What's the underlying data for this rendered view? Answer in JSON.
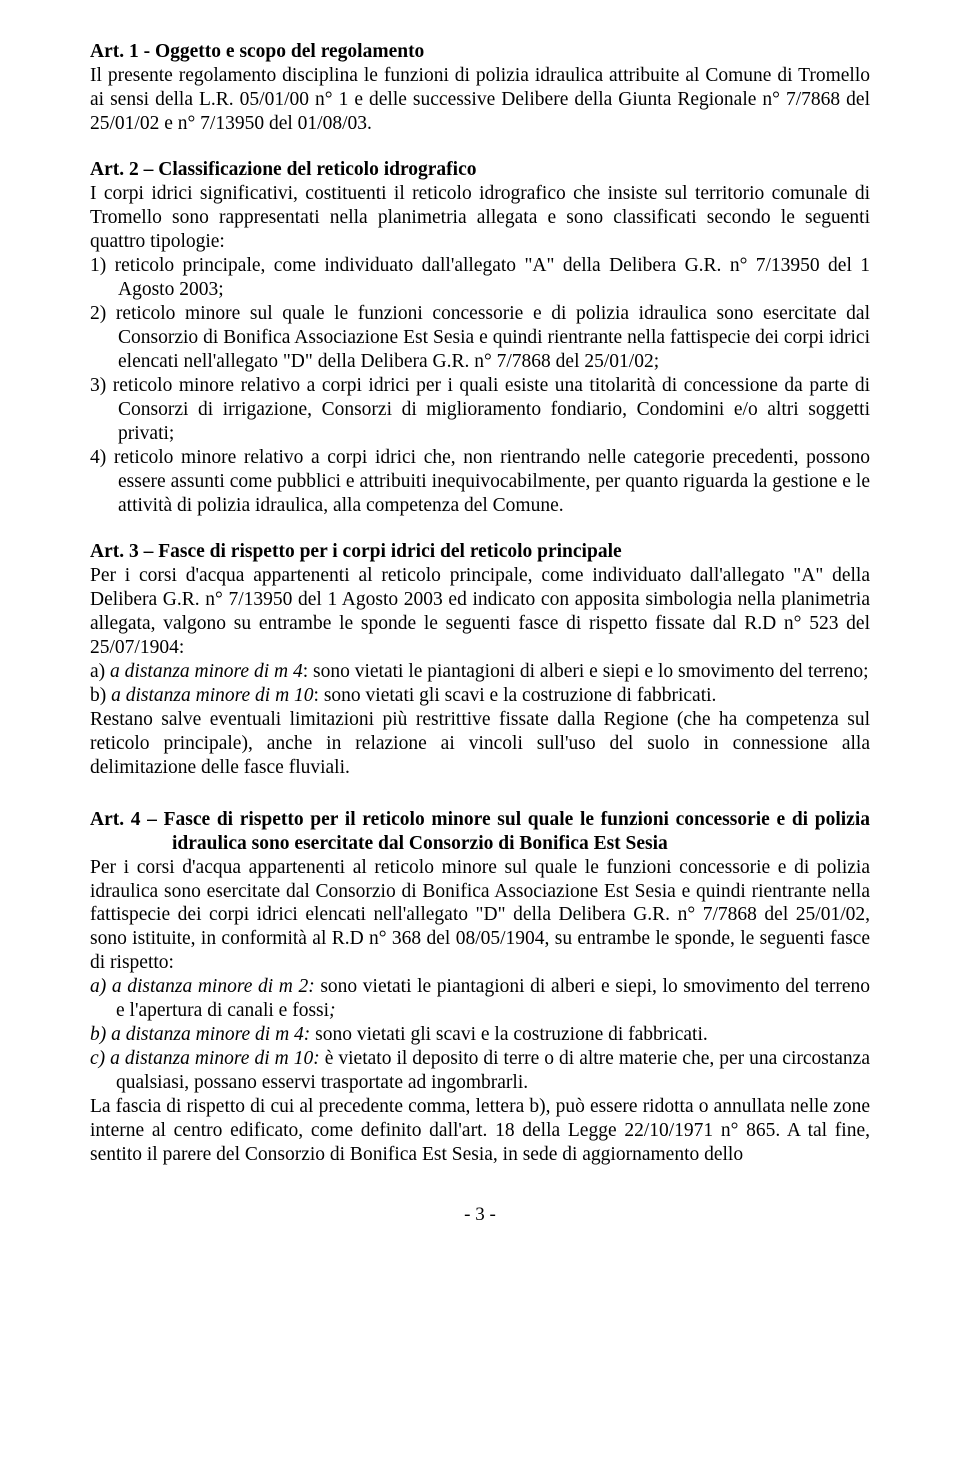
{
  "art1": {
    "heading": "Art. 1 - Oggetto e scopo del regolamento",
    "body": "Il presente regolamento disciplina le funzioni di polizia idraulica attribuite al Comune di Tromello ai sensi della L.R. 05/01/00 n° 1 e delle successive Delibere della Giunta Regionale n° 7/7868 del 25/01/02 e n° 7/13950 del 01/08/03."
  },
  "art2": {
    "heading": "Art. 2 – Classificazione del reticolo idrografico",
    "intro": "I corpi idrici significativi, costituenti il reticolo idrografico che insiste sul territorio comunale di Tromello sono rappresentati nella planimetria allegata e sono classificati secondo le seguenti quattro tipologie:",
    "items": [
      "reticolo principale, come individuato dall'allegato \"A\" della Delibera G.R. n° 7/13950 del 1 Agosto 2003;",
      "reticolo minore sul quale le funzioni concessorie e di polizia idraulica sono esercitate dal Consorzio di Bonifica Associazione Est Sesia e quindi rientrante nella fattispecie dei corpi idrici elencati nell'allegato \"D\" della Delibera G.R. n° 7/7868 del 25/01/02;",
      "reticolo minore relativo a corpi idrici per i quali esiste una titolarità di concessione da parte di Consorzi di irrigazione, Consorzi di miglioramento fondiario, Condomini e/o altri soggetti privati;",
      "reticolo minore relativo a corpi idrici che, non rientrando nelle categorie precedenti, possono essere assunti come pubblici e attribuiti inequivocabilmente, per quanto riguarda la gestione e le attività di polizia idraulica, alla competenza del Comune."
    ]
  },
  "art3": {
    "heading": "Art. 3 – Fasce di rispetto per i corpi idrici del reticolo principale",
    "intro": "Per i corsi d'acqua appartenenti al reticolo principale, come individuato dall'allegato \"A\" della Delibera G.R. n° 7/13950 del 1 Agosto 2003 ed indicato con apposita simbologia nella planimetria allegata, valgono su entrambe le sponde le seguenti fasce di rispetto fissate dal R.D n° 523 del 25/07/1904:",
    "item_a_ital": "a distanza minore di m 4",
    "item_a_rest": ": sono vietati le piantagioni di alberi e siepi e lo smovimento del terreno;",
    "item_b_ital": "a distanza minore di m 10",
    "item_b_rest": ": sono vietati gli scavi e la costruzione  di fabbricati.",
    "closing": "Restano salve eventuali limitazioni più restrittive fissate dalla Regione (che ha competenza sul reticolo principale), anche in relazione ai vincoli sull'uso del suolo in connessione alla delimitazione delle fasce fluviali."
  },
  "art4": {
    "heading": "Art. 4 – Fasce di rispetto per il reticolo minore sul quale le funzioni concessorie e di polizia idraulica sono esercitate dal Consorzio di Bonifica Est Sesia",
    "intro": "Per i corsi d'acqua appartenenti al reticolo minore sul quale le funzioni concessorie e di polizia idraulica sono esercitate dal Consorzio di Bonifica Associazione Est Sesia e quindi rientrante nella fattispecie dei corpi idrici elencati nell'allegato \"D\" della Delibera G.R. n° 7/7868 del 25/01/02, sono istituite, in conformità al R.D n° 368 del 08/05/1904, su entrambe le sponde, le seguenti fasce di rispetto:",
    "item_a_lead": "a)  ",
    "item_a_ital": "a distanza minore di m 2: ",
    "item_a_rest": "sono vietati le piantagioni di alberi e siepi, lo smovimento del terreno e l'apertura di canali e fossi",
    "item_a_semi": ";",
    "item_b_lead": "b)  ",
    "item_b_ital": "a distanza minore di m 4: ",
    "item_b_rest": "sono vietati gli scavi e la costruzione  di fabbricati.",
    "item_c_lead": "c)  ",
    "item_c_ital": "a distanza minore di m 10: ",
    "item_c_rest": "è vietato il deposito di terre o di altre materie che, per una circostanza qualsiasi, possano esservi trasportate ad ingombrarli.",
    "closing": "La fascia di rispetto di cui al precedente comma, lettera b), può essere ridotta o annullata nelle zone interne al centro edificato, come definito dall'art. 18 della Legge 22/10/1971 n° 865. A tal fine, sentito il parere del Consorzio di Bonifica Est Sesia, in sede di aggiornamento dello"
  },
  "labels": {
    "n1": "1)  ",
    "n2": "2)  ",
    "n3": "3)  ",
    "n4": "4)  ",
    "la": "a)  ",
    "lb": "b)  "
  },
  "pagenum": "- 3 -"
}
